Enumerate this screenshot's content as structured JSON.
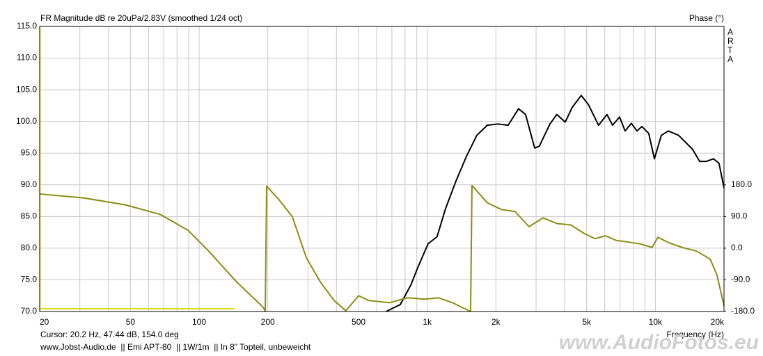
{
  "chart_data": {
    "type": "line",
    "title": "FR Magnitude dB re 20uPa/2.83V (smoothed 1/24 oct)",
    "y2_label": "Phase (°)",
    "x_label": "Frequency (Hz)",
    "brand": "ARTA",
    "cursor_text": "Cursor: 20.2 Hz, 47.44 dB, 154.0 deg",
    "footer": "www.Jobst-Audio.de  || Emi APT-80  || 1W/1m  || In 8\" Topteil, unbeweicht",
    "watermark": "www.AudioFotos.eu",
    "xscale": "log",
    "grid": true,
    "xlim": [
      20,
      20000
    ],
    "xticks": [
      20,
      50,
      100,
      200,
      500,
      {
        "value": 1000,
        "label": "1k"
      },
      {
        "value": 2000,
        "label": "2k"
      },
      {
        "value": 5000,
        "label": "5k"
      },
      {
        "value": 10000,
        "label": "10k"
      },
      {
        "value": 20000,
        "label": "20k"
      }
    ],
    "xminorticks": [
      30,
      40,
      60,
      70,
      80,
      90,
      300,
      400,
      600,
      700,
      800,
      900,
      3000,
      4000,
      6000,
      7000,
      8000,
      9000
    ],
    "ylim": [
      70,
      115
    ],
    "yticks": [
      {
        "value": 70,
        "label": "70.0"
      },
      {
        "value": 75,
        "label": "75.0"
      },
      {
        "value": 80,
        "label": "80.0"
      },
      {
        "value": 85,
        "label": "85.0"
      },
      {
        "value": 90,
        "label": "90.0"
      },
      {
        "value": 95,
        "label": "95.0"
      },
      {
        "value": 100,
        "label": "100.0"
      },
      {
        "value": 105,
        "label": "105.0"
      },
      {
        "value": 110,
        "label": "110.0"
      },
      {
        "value": 115,
        "label": "115.0"
      }
    ],
    "y2lim": [
      -180,
      630
    ],
    "y2ticks": [
      {
        "value": 180,
        "label": "180.0"
      },
      {
        "value": 90,
        "label": "90.0"
      },
      {
        "value": 0,
        "label": "0.0"
      },
      {
        "value": -90,
        "label": "-90.0"
      },
      {
        "value": -180,
        "label": "-180.0"
      }
    ],
    "series": [
      {
        "color": "#000000",
        "x": [
          660,
          762,
          848,
          908,
          1009,
          1104,
          1202,
          1337,
          1486,
          1649,
          1833,
          2037,
          2263,
          2513,
          2698,
          2958,
          3100,
          3451,
          3699,
          4027,
          4317,
          4731,
          5082,
          5637,
          6139,
          6491,
          6970,
          7367,
          7852,
          8304,
          8730,
          9356,
          9905,
          10620,
          11400,
          12650,
          13580,
          14560,
          15640,
          16750,
          17980,
          19010,
          20000
        ],
        "values": [
          70,
          71.1,
          74.2,
          76.9,
          80.7,
          81.8,
          86.2,
          90.6,
          94.5,
          97.8,
          99.4,
          99.6,
          99.4,
          102.0,
          101.1,
          95.8,
          96.1,
          99.6,
          101.1,
          99.9,
          102.2,
          104.1,
          102.7,
          99.4,
          101.1,
          99.4,
          100.7,
          98.5,
          99.7,
          98.5,
          99.2,
          98.1,
          94.1,
          97.8,
          98.5,
          97.8,
          96.7,
          95.6,
          93.7,
          93.7,
          94.1,
          93.4,
          89.5
        ]
      },
      {
        "color": "#8c8c14",
        "axis": "y2",
        "x": [
          20,
          31.1,
          47.5,
          67.4,
          89.3,
          110,
          146,
          191,
          195,
          197.7,
          223,
          256,
          295,
          340,
          391,
          440,
          500,
          555,
          686,
          817,
          975,
          1122,
          1291,
          1506,
          1549,
          1571,
          1833,
          2109,
          2427,
          2793,
          3216,
          3699,
          4257,
          4899,
          5443,
          6054,
          6730,
          7470,
          8590,
          9680,
          10260,
          11400,
          13120,
          15100,
          17380,
          18620,
          20000
        ],
        "values": [
          154,
          142.8,
          123,
          96,
          51,
          -8,
          -96,
          -168,
          -180,
          176,
          139,
          90,
          -27,
          -96,
          -149,
          -178,
          -135,
          -149,
          -155,
          -141,
          -145,
          -141,
          -155,
          -176,
          -180,
          178,
          129,
          110,
          104,
          61,
          86,
          70,
          66,
          41,
          27,
          35,
          22,
          18,
          12,
          2,
          31,
          16,
          2,
          -8,
          -31,
          -76,
          -164
        ]
      }
    ]
  }
}
